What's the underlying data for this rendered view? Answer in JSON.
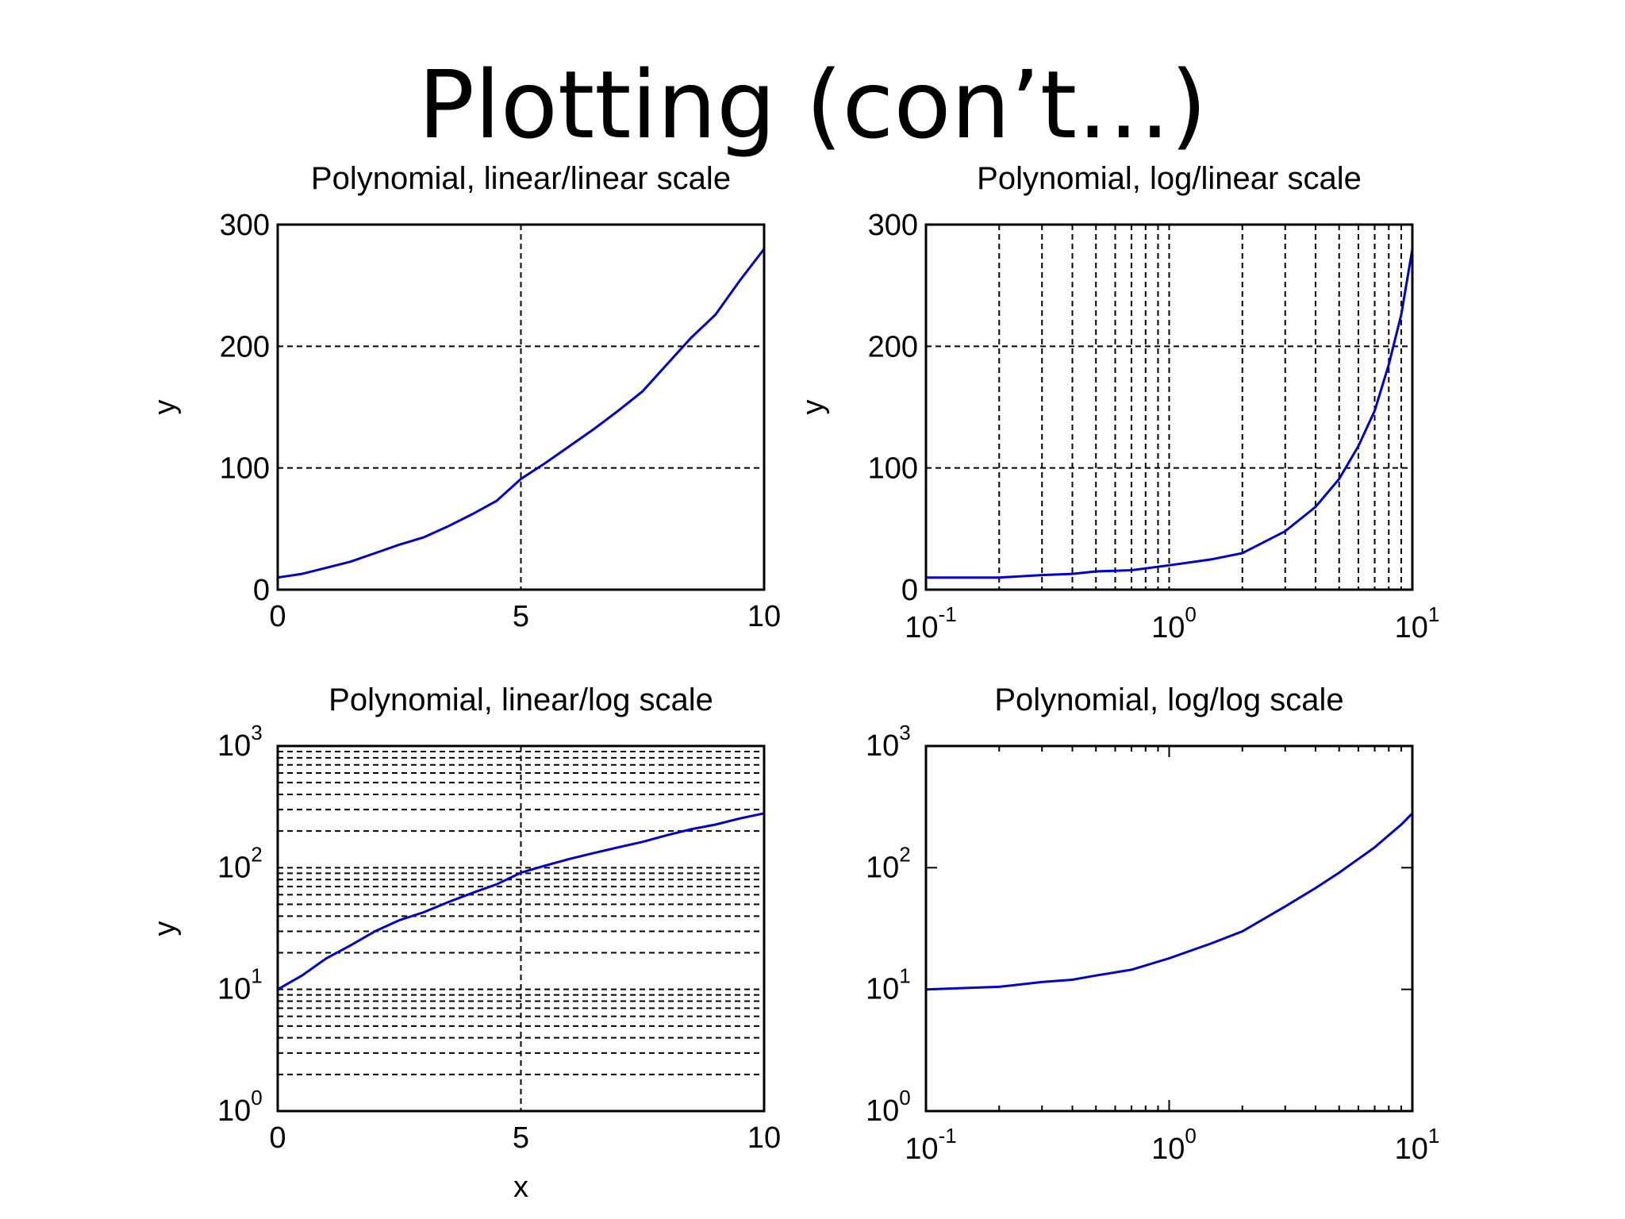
{
  "slide": {
    "title": "Plotting (con’t…)"
  },
  "colors": {
    "line": "#0000cc",
    "grid": "#000000",
    "axes": "#000000"
  },
  "chart_data": [
    {
      "type": "line",
      "title": "Polynomial, linear/linear scale",
      "xlabel": "",
      "ylabel": "y",
      "xscale": "linear",
      "yscale": "linear",
      "xlim": [
        0,
        10
      ],
      "ylim": [
        0,
        300
      ],
      "xticks": [
        0,
        5,
        10
      ],
      "yticks": [
        0,
        100,
        200,
        300
      ],
      "xtick_labels": [
        "0",
        "5",
        "10"
      ],
      "ytick_labels": [
        "0",
        "100",
        "200",
        "300"
      ],
      "grid": "major",
      "series": [
        {
          "x": [
            0,
            0.5,
            1,
            1.5,
            2,
            2.5,
            3,
            3.5,
            4,
            4.5,
            5,
            5.5,
            6,
            6.5,
            7,
            7.5,
            8,
            8.5,
            9,
            9.5,
            10
          ],
          "y": [
            10,
            13,
            18,
            23,
            30,
            37,
            43,
            52,
            62,
            73,
            91,
            104,
            118,
            132,
            147,
            163,
            185,
            207,
            226,
            254,
            280
          ]
        }
      ]
    },
    {
      "type": "line",
      "title": "Polynomial, log/linear scale",
      "xlabel": "",
      "ylabel": "y",
      "xscale": "log",
      "yscale": "linear",
      "xlim": [
        0.1,
        10
      ],
      "ylim": [
        0,
        300
      ],
      "xticks": [
        0.1,
        1,
        10
      ],
      "yticks": [
        0,
        100,
        200,
        300
      ],
      "xtick_labels": [
        {
          "base": "10",
          "exp": "-1"
        },
        {
          "base": "10",
          "exp": "0"
        },
        {
          "base": "10",
          "exp": "1"
        }
      ],
      "ytick_labels": [
        "0",
        "100",
        "200",
        "300"
      ],
      "grid": "major+minor-x",
      "series": [
        {
          "x": [
            0.1,
            0.2,
            0.3,
            0.4,
            0.5,
            0.7,
            1,
            1.5,
            2,
            3,
            4,
            5,
            6,
            7,
            8,
            9,
            10
          ],
          "y": [
            10,
            10,
            12,
            13,
            15,
            16,
            20,
            25,
            30,
            48,
            68,
            91,
            118,
            147,
            185,
            226,
            280
          ]
        }
      ]
    },
    {
      "type": "line",
      "title": "Polynomial, linear/log scale",
      "xlabel": "x",
      "ylabel": "y",
      "xscale": "linear",
      "yscale": "log",
      "xlim": [
        0,
        10
      ],
      "ylim": [
        1,
        1000
      ],
      "xticks": [
        0,
        5,
        10
      ],
      "yticks": [
        1,
        10,
        100,
        1000
      ],
      "xtick_labels": [
        "0",
        "5",
        "10"
      ],
      "ytick_labels": [
        {
          "base": "10",
          "exp": "0"
        },
        {
          "base": "10",
          "exp": "1"
        },
        {
          "base": "10",
          "exp": "2"
        },
        {
          "base": "10",
          "exp": "3"
        }
      ],
      "grid": "major+minor-y",
      "series": [
        {
          "x": [
            0,
            0.5,
            1,
            1.5,
            2,
            2.5,
            3,
            3.5,
            4,
            4.5,
            5,
            5.5,
            6,
            6.5,
            7,
            7.5,
            8,
            8.5,
            9,
            9.5,
            10
          ],
          "y": [
            10,
            13,
            18,
            23,
            30,
            37,
            43,
            52,
            62,
            73,
            91,
            104,
            118,
            132,
            147,
            163,
            185,
            207,
            226,
            254,
            280
          ]
        }
      ]
    },
    {
      "type": "line",
      "title": "Polynomial, log/log scale",
      "xlabel": "",
      "ylabel": "",
      "xscale": "log",
      "yscale": "log",
      "xlim": [
        0.1,
        10
      ],
      "ylim": [
        1,
        1000
      ],
      "xticks": [
        0.1,
        1,
        10
      ],
      "yticks": [
        1,
        10,
        100,
        1000
      ],
      "xtick_labels": [
        {
          "base": "10",
          "exp": "-1"
        },
        {
          "base": "10",
          "exp": "0"
        },
        {
          "base": "10",
          "exp": "1"
        }
      ],
      "ytick_labels": [
        {
          "base": "10",
          "exp": "0"
        },
        {
          "base": "10",
          "exp": "1"
        },
        {
          "base": "10",
          "exp": "2"
        },
        {
          "base": "10",
          "exp": "3"
        }
      ],
      "grid": "none",
      "series": [
        {
          "x": [
            0.1,
            0.2,
            0.3,
            0.4,
            0.5,
            0.7,
            1,
            1.5,
            2,
            3,
            4,
            5,
            6,
            7,
            8,
            9,
            10
          ],
          "y": [
            10,
            10.5,
            11.5,
            12,
            13,
            14.5,
            18,
            24,
            30,
            48,
            68,
            91,
            118,
            147,
            185,
            226,
            280
          ]
        }
      ]
    }
  ]
}
